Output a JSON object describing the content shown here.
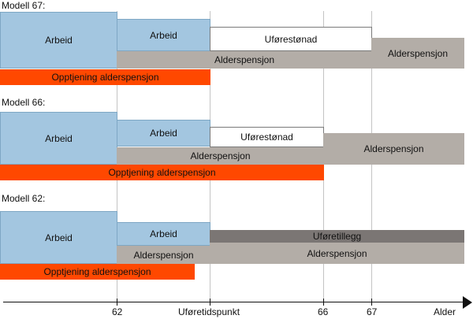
{
  "axis": {
    "ticks": [
      "62",
      "Uføretidspunkt",
      "66",
      "67"
    ],
    "label": "Alder"
  },
  "models": [
    {
      "title": "Modell 67:",
      "segments": {
        "arbeid_1": "Arbeid",
        "arbeid_2": "Arbeid",
        "uforestonad": "Uførestønad",
        "alderspensjon_1": "Alderspensjon",
        "alderspensjon_2": "Alderspensjon",
        "opptjening": "Opptjening alderspensjon"
      }
    },
    {
      "title": "Modell 66:",
      "segments": {
        "arbeid_1": "Arbeid",
        "arbeid_2": "Arbeid",
        "uforestonad": "Uførestønad",
        "alderspensjon_1": "Alderspensjon",
        "alderspensjon_2": "Alderspensjon",
        "opptjening": "Opptjening alderspensjon"
      }
    },
    {
      "title": "Modell 62:",
      "segments": {
        "arbeid_1": "Arbeid",
        "arbeid_2": "Arbeid",
        "uforetillegg": "Uføretillegg",
        "alderspensjon_1": "Alderspensjon",
        "alderspensjon_2": "Alderspensjon",
        "opptjening": "Opptjening alderspensjon"
      }
    }
  ],
  "colors": {
    "arbeid": "#a3c6e0",
    "alderspensjon": "#b3ada7",
    "uforetillegg": "#7b7674",
    "uforestonad": "#ffffff",
    "opptjening": "#ff4800"
  }
}
